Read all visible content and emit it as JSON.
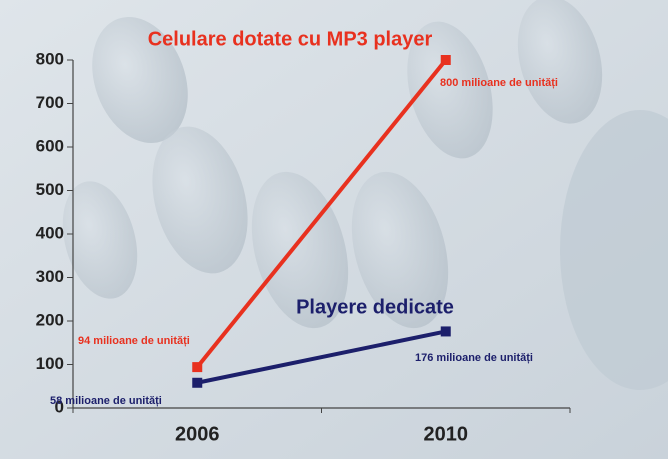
{
  "chart_data": {
    "type": "line",
    "categories": [
      "2006",
      "2010"
    ],
    "series": [
      {
        "name": "Celulare dotate cu MP3 player",
        "color": "#e8311f",
        "values": [
          94,
          800
        ],
        "value_labels": [
          "94 milioane de unități",
          "800 milioane de unități"
        ]
      },
      {
        "name": "Playere dedicate",
        "color": "#1c1f6b",
        "values": [
          58,
          176
        ],
        "value_labels": [
          "58 milioane de unități",
          "176 milioane de unități"
        ]
      }
    ],
    "ylim": [
      0,
      800
    ],
    "yticks": [
      0,
      100,
      200,
      300,
      400,
      500,
      600,
      700,
      800
    ],
    "grid": false
  }
}
